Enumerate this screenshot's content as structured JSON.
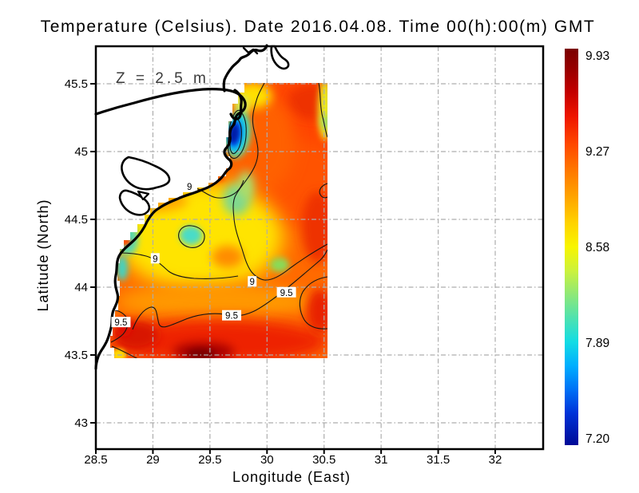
{
  "title": "Temperature (Celsius). Date 2016.04.08. Time 00(h):00(m) GMT",
  "annotation": {
    "depth_label": "Z = 2.5 m"
  },
  "axes": {
    "x": {
      "label": "Longitude (East)",
      "ticks": [
        "28.5",
        "29",
        "29.5",
        "30",
        "30.5",
        "31",
        "31.5",
        "32"
      ]
    },
    "y": {
      "label": "Latitude (North)",
      "ticks": [
        "45.5",
        "45",
        "44.5",
        "44",
        "43.5",
        "43"
      ]
    }
  },
  "colorbar": {
    "labels": [
      "9.93",
      "9.27",
      "8.58",
      "7.89",
      "7.20"
    ],
    "gradient_stops": [
      [
        "0",
        "#7A0000"
      ],
      [
        "0.05",
        "#970000"
      ],
      [
        "0.11",
        "#C40000"
      ],
      [
        "0.17",
        "#EE1500"
      ],
      [
        "0.24",
        "#FF4700"
      ],
      [
        "0.31",
        "#FF7A00"
      ],
      [
        "0.38",
        "#FFA800"
      ],
      [
        "0.44",
        "#FFD300"
      ],
      [
        "0.5",
        "#F8F500"
      ],
      [
        "0.56",
        "#CCF23C"
      ],
      [
        "0.62",
        "#8EE878"
      ],
      [
        "0.68",
        "#4EE2B0"
      ],
      [
        "0.74",
        "#12DCE4"
      ],
      [
        "0.8",
        "#00AEFF"
      ],
      [
        "0.86",
        "#0071F6"
      ],
      [
        "0.92",
        "#0032D8"
      ],
      [
        "1",
        "#000A96"
      ]
    ]
  },
  "chart_data": {
    "type": "heatmap",
    "title": "Temperature (Celsius). Date 2016.04.08. Time 00(h):00(m) GMT",
    "xlabel": "Longitude (East)",
    "ylabel": "Latitude (North)",
    "xlim": [
      28.5,
      32.42
    ],
    "ylim": [
      42.81,
      45.78
    ],
    "x_ticks": [
      28.5,
      29,
      29.5,
      30,
      30.5,
      31,
      31.5,
      32
    ],
    "y_ticks": [
      43,
      43.5,
      44,
      44.5,
      45,
      45.5
    ],
    "grid": true,
    "depth_annotation": "Z = 2.5 m",
    "colormap": "jet",
    "value_units": "Celsius",
    "value_range": [
      7.2,
      9.93
    ],
    "colorbar_ticks": [
      9.93,
      9.27,
      8.58,
      7.89,
      7.2
    ],
    "data_extent": {
      "lon": [
        28.6,
        30.53
      ],
      "lat": [
        43.47,
        45.51
      ]
    },
    "contour_levels_labeled": [
      9,
      9.5
    ],
    "contour_labels": [
      {
        "value": "9",
        "lon": 29.32,
        "lat": 44.74
      },
      {
        "value": "9",
        "lon": 29.02,
        "lat": 44.21
      },
      {
        "value": "9",
        "lon": 29.87,
        "lat": 44.04
      },
      {
        "value": "9.5",
        "lon": 28.72,
        "lat": 43.74
      },
      {
        "value": "9.5",
        "lon": 29.69,
        "lat": 43.79
      },
      {
        "value": "9.5",
        "lon": 30.17,
        "lat": 43.96
      }
    ],
    "features": [
      {
        "name": "cold-plume-danube-mouth",
        "lon": 29.72,
        "lat": 45.05,
        "approx_value": 7.3
      },
      {
        "name": "warm-core-southwest",
        "lon": 29.45,
        "lat": 43.55,
        "approx_value": 9.9
      }
    ]
  }
}
